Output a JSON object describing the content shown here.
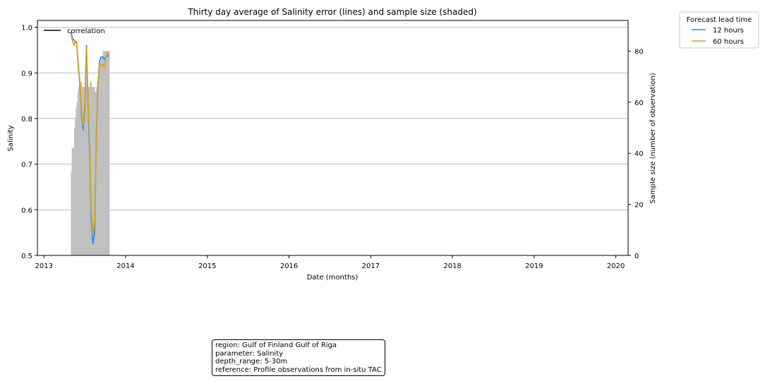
{
  "chart_data": {
    "type": "line",
    "title": "Thirty day average of Salinity error (lines) and sample size (shaded)",
    "xlabel": "Date (months)",
    "ylabel": "Salinity",
    "ylabel_right": "Sample size (number of observation)",
    "xlim": [
      2012.92,
      2020.15
    ],
    "ylim": [
      0.5,
      1.015
    ],
    "ylim_right": [
      0,
      92
    ],
    "x_ticks": [
      2013,
      2014,
      2015,
      2016,
      2017,
      2018,
      2019,
      2020
    ],
    "x_tick_labels": [
      "2013",
      "2014",
      "2015",
      "2016",
      "2017",
      "2018",
      "2019",
      "2020"
    ],
    "y_ticks": [
      0.5,
      0.6,
      0.7,
      0.8,
      0.9,
      1.0
    ],
    "y_tick_labels": [
      "0.5",
      "0.6",
      "0.7",
      "0.8",
      "0.9",
      "1.0"
    ],
    "y_ticks_right": [
      0,
      20,
      40,
      60,
      80
    ],
    "y_tick_labels_right": [
      "0",
      "20",
      "40",
      "60",
      "80"
    ],
    "grid": "horizontal",
    "legend_left": {
      "label": "correlation",
      "color": "#000000",
      "placement": "top-left"
    },
    "legend_right": {
      "title": "Forecast lead time",
      "placement": "outside-top-right",
      "entries": [
        {
          "label": "12 hours",
          "color": "#1e90ff"
        },
        {
          "label": "60 hours",
          "color": "#daa520"
        }
      ]
    },
    "series": [
      {
        "name": "12 hours",
        "color": "#1e90ff",
        "x": [
          2013.33,
          2013.35,
          2013.38,
          2013.4,
          2013.42,
          2013.44,
          2013.46,
          2013.48,
          2013.5,
          2013.52,
          2013.54,
          2013.56,
          2013.58,
          2013.6,
          2013.62,
          2013.64,
          2013.66,
          2013.68,
          2013.7,
          2013.72,
          2013.74,
          2013.76,
          2013.78,
          2013.79
        ],
        "y": [
          0.99,
          0.975,
          0.97,
          0.968,
          0.915,
          0.875,
          0.81,
          0.775,
          0.82,
          0.96,
          0.83,
          0.72,
          0.58,
          0.525,
          0.55,
          0.75,
          0.87,
          0.925,
          0.935,
          0.935,
          0.93,
          0.935,
          0.94,
          0.935
        ]
      },
      {
        "name": "60 hours",
        "color": "#daa520",
        "x": [
          2013.33,
          2013.35,
          2013.37,
          2013.38,
          2013.4,
          2013.42,
          2013.44,
          2013.46,
          2013.48,
          2013.5,
          2013.52,
          2013.54,
          2013.56,
          2013.58,
          2013.6,
          2013.62,
          2013.64,
          2013.66,
          2013.68,
          2013.7,
          2013.72,
          2013.74,
          2013.76,
          2013.78,
          2013.79
        ],
        "y": [
          0.985,
          0.97,
          0.96,
          0.97,
          0.965,
          0.92,
          0.88,
          0.82,
          0.785,
          0.835,
          0.955,
          0.85,
          0.74,
          0.6,
          0.545,
          0.575,
          0.74,
          0.865,
          0.92,
          0.915,
          0.92,
          0.91,
          0.935,
          0.945,
          0.94
        ]
      }
    ],
    "sample_size": {
      "color": "#c0c0c0",
      "x": [
        2013.33,
        2013.34,
        2013.35,
        2013.36,
        2013.37,
        2013.38,
        2013.39,
        2013.4,
        2013.41,
        2013.42,
        2013.43,
        2013.44,
        2013.45,
        2013.46,
        2013.47,
        2013.48,
        2013.49,
        2013.5,
        2013.51,
        2013.52,
        2013.53,
        2013.54,
        2013.55,
        2013.56,
        2013.57,
        2013.58,
        2013.59,
        2013.6,
        2013.61,
        2013.62,
        2013.63,
        2013.64,
        2013.65,
        2013.66,
        2013.67,
        2013.68,
        2013.69,
        2013.7,
        2013.71,
        2013.72,
        2013.73,
        2013.74,
        2013.75,
        2013.76,
        2013.77,
        2013.78,
        2013.79
      ],
      "values": [
        33,
        42,
        42,
        42,
        50,
        54,
        58,
        60,
        64,
        66,
        68,
        68,
        68,
        66,
        66,
        66,
        66,
        68,
        68,
        70,
        66,
        66,
        66,
        68,
        68,
        66,
        66,
        66,
        66,
        64,
        64,
        66,
        68,
        70,
        72,
        74,
        76,
        77,
        78,
        80,
        80,
        80,
        80,
        80,
        80,
        80,
        80
      ]
    }
  },
  "info_box": {
    "region": "region: Gulf of Finland Gulf of Riga",
    "parameter": "parameter: Salinity",
    "depth_range": "depth_range: 5-30m",
    "reference": "reference: Profile observations from in-situ TAC"
  }
}
